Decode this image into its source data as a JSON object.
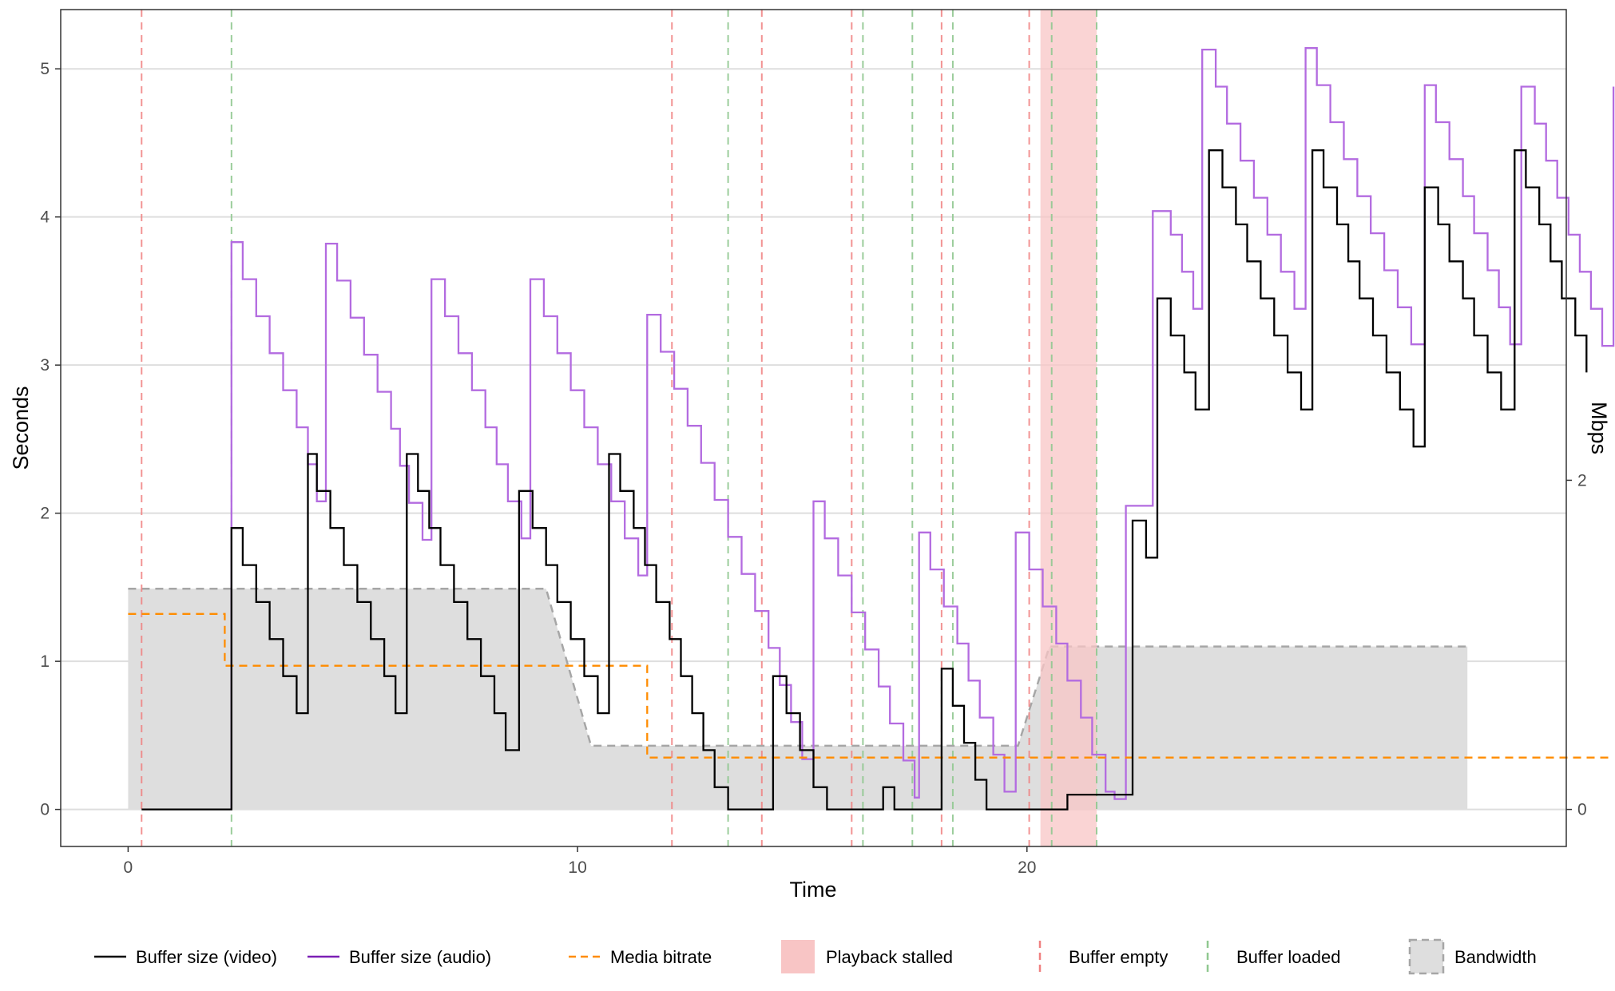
{
  "chart_data": {
    "type": "line",
    "xlabel": "Time",
    "ylabel": "Seconds",
    "y2label": "Mbps",
    "xlim": [
      -1.5,
      32.0
    ],
    "ylim": [
      -0.25,
      5.4
    ],
    "y2lim": [
      -0.225,
      4.86
    ],
    "x_ticks": [
      {
        "v": 0,
        "label": "0"
      },
      {
        "v": 10,
        "label": "10"
      },
      {
        "v": 20,
        "label": "20"
      }
    ],
    "y_ticks": [
      {
        "v": 0,
        "label": "0"
      },
      {
        "v": 1,
        "label": "1"
      },
      {
        "v": 2,
        "label": "2"
      },
      {
        "v": 3,
        "label": "3"
      },
      {
        "v": 4,
        "label": "4"
      },
      {
        "v": 5,
        "label": "5"
      }
    ],
    "y2_ticks": [
      {
        "v": 0,
        "label": "0"
      },
      {
        "v": 2,
        "label": "2"
      }
    ],
    "grid": true,
    "legend_position": "bottom",
    "legend": [
      {
        "key": "video",
        "label": "Buffer size (video)"
      },
      {
        "key": "audio",
        "label": "Buffer size (audio)"
      },
      {
        "key": "bitrate",
        "label": "Media bitrate"
      },
      {
        "key": "stalled",
        "label": "Playback stalled"
      },
      {
        "key": "empty",
        "label": "Buffer empty"
      },
      {
        "key": "loaded",
        "label": "Buffer loaded"
      },
      {
        "key": "bandwidth",
        "label": "Bandwidth"
      }
    ],
    "colors": {
      "video": "#000000",
      "audio": "#b36be0",
      "bitrate": "#ff8c00",
      "stalled": "#f8c5c5",
      "empty": "#f08080",
      "loaded": "#90c890",
      "bandwidth_fill": "#dedede",
      "bandwidth_line": "#a6a6a6"
    },
    "series": [
      {
        "key": "video",
        "axis": "left",
        "step": true,
        "points": [
          [
            0.3,
            0
          ],
          [
            2.3,
            0
          ],
          [
            2.3,
            1.9
          ],
          [
            2.55,
            1.65
          ],
          [
            2.85,
            1.4
          ],
          [
            3.15,
            1.15
          ],
          [
            3.45,
            0.9
          ],
          [
            3.75,
            0.65
          ],
          [
            4.0,
            2.4
          ],
          [
            4.2,
            2.15
          ],
          [
            4.5,
            1.9
          ],
          [
            4.8,
            1.65
          ],
          [
            5.1,
            1.4
          ],
          [
            5.4,
            1.15
          ],
          [
            5.7,
            0.9
          ],
          [
            5.95,
            0.65
          ],
          [
            6.2,
            2.4
          ],
          [
            6.45,
            2.15
          ],
          [
            6.7,
            1.9
          ],
          [
            6.95,
            1.65
          ],
          [
            7.25,
            1.4
          ],
          [
            7.55,
            1.15
          ],
          [
            7.85,
            0.9
          ],
          [
            8.15,
            0.65
          ],
          [
            8.4,
            0.4
          ],
          [
            8.7,
            2.15
          ],
          [
            9.0,
            1.9
          ],
          [
            9.3,
            1.65
          ],
          [
            9.55,
            1.4
          ],
          [
            9.85,
            1.15
          ],
          [
            10.15,
            0.9
          ],
          [
            10.45,
            0.65
          ],
          [
            10.7,
            2.4
          ],
          [
            10.95,
            2.15
          ],
          [
            11.25,
            1.9
          ],
          [
            11.5,
            1.65
          ],
          [
            11.75,
            1.4
          ],
          [
            12.05,
            1.15
          ],
          [
            12.3,
            0.9
          ],
          [
            12.55,
            0.65
          ],
          [
            12.8,
            0.4
          ],
          [
            13.05,
            0.15
          ],
          [
            13.35,
            0
          ],
          [
            14.35,
            0
          ],
          [
            14.35,
            0.9
          ],
          [
            14.65,
            0.65
          ],
          [
            14.95,
            0.4
          ],
          [
            15.25,
            0.15
          ],
          [
            15.55,
            0
          ],
          [
            16.8,
            0
          ],
          [
            16.8,
            0.15
          ],
          [
            17.05,
            0
          ],
          [
            18.1,
            0
          ],
          [
            18.1,
            0.95
          ],
          [
            18.35,
            0.7
          ],
          [
            18.6,
            0.45
          ],
          [
            18.85,
            0.2
          ],
          [
            19.1,
            0
          ],
          [
            20.9,
            0
          ],
          [
            20.9,
            0.1
          ],
          [
            21.2,
            0.1
          ],
          [
            22.35,
            0.1
          ],
          [
            22.35,
            1.95
          ],
          [
            22.65,
            1.7
          ],
          [
            22.9,
            3.45
          ],
          [
            23.2,
            3.2
          ],
          [
            23.5,
            2.95
          ],
          [
            23.75,
            2.7
          ],
          [
            24.05,
            4.45
          ],
          [
            24.35,
            4.2
          ],
          [
            24.65,
            3.95
          ],
          [
            24.9,
            3.7
          ],
          [
            25.2,
            3.45
          ],
          [
            25.5,
            3.2
          ],
          [
            25.8,
            2.95
          ],
          [
            26.1,
            2.7
          ],
          [
            26.35,
            4.45
          ],
          [
            26.6,
            4.2
          ],
          [
            26.9,
            3.95
          ],
          [
            27.15,
            3.7
          ],
          [
            27.4,
            3.45
          ],
          [
            27.7,
            3.2
          ],
          [
            28.0,
            2.95
          ],
          [
            28.3,
            2.7
          ],
          [
            28.6,
            2.45
          ],
          [
            28.85,
            4.2
          ],
          [
            29.15,
            3.95
          ],
          [
            29.4,
            3.7
          ],
          [
            29.7,
            3.45
          ],
          [
            29.95,
            3.2
          ],
          [
            30.25,
            2.95
          ],
          [
            30.55,
            2.7
          ],
          [
            30.85,
            4.45
          ],
          [
            31.1,
            4.2
          ],
          [
            31.4,
            3.95
          ],
          [
            31.65,
            3.7
          ],
          [
            31.9,
            3.45
          ],
          [
            32.2,
            3.2
          ],
          [
            32.45,
            2.95
          ]
        ]
      },
      {
        "key": "audio",
        "axis": "left",
        "step": true,
        "points": [
          [
            2.3,
            0
          ],
          [
            2.3,
            3.83
          ],
          [
            2.55,
            3.58
          ],
          [
            2.85,
            3.33
          ],
          [
            3.15,
            3.08
          ],
          [
            3.45,
            2.83
          ],
          [
            3.75,
            2.58
          ],
          [
            4.0,
            2.33
          ],
          [
            4.2,
            2.08
          ],
          [
            4.4,
            3.82
          ],
          [
            4.65,
            3.57
          ],
          [
            4.95,
            3.32
          ],
          [
            5.25,
            3.07
          ],
          [
            5.55,
            2.82
          ],
          [
            5.85,
            2.57
          ],
          [
            6.05,
            2.32
          ],
          [
            6.25,
            2.07
          ],
          [
            6.55,
            1.82
          ],
          [
            6.75,
            3.58
          ],
          [
            7.05,
            3.33
          ],
          [
            7.35,
            3.08
          ],
          [
            7.65,
            2.83
          ],
          [
            7.95,
            2.58
          ],
          [
            8.2,
            2.33
          ],
          [
            8.45,
            2.08
          ],
          [
            8.75,
            1.83
          ],
          [
            8.95,
            3.58
          ],
          [
            9.25,
            3.33
          ],
          [
            9.55,
            3.08
          ],
          [
            9.85,
            2.83
          ],
          [
            10.15,
            2.58
          ],
          [
            10.45,
            2.33
          ],
          [
            10.75,
            2.08
          ],
          [
            11.05,
            1.83
          ],
          [
            11.35,
            1.58
          ],
          [
            11.55,
            3.34
          ],
          [
            11.85,
            3.09
          ],
          [
            12.15,
            2.84
          ],
          [
            12.45,
            2.59
          ],
          [
            12.75,
            2.34
          ],
          [
            13.05,
            2.09
          ],
          [
            13.35,
            1.84
          ],
          [
            13.65,
            1.59
          ],
          [
            13.95,
            1.34
          ],
          [
            14.25,
            1.09
          ],
          [
            14.5,
            0.84
          ],
          [
            14.75,
            0.59
          ],
          [
            15.0,
            0.34
          ],
          [
            15.25,
            2.08
          ],
          [
            15.5,
            1.83
          ],
          [
            15.8,
            1.58
          ],
          [
            16.1,
            1.33
          ],
          [
            16.4,
            1.08
          ],
          [
            16.7,
            0.83
          ],
          [
            16.95,
            0.58
          ],
          [
            17.25,
            0.33
          ],
          [
            17.5,
            0.08
          ],
          [
            17.6,
            1.87
          ],
          [
            17.85,
            1.62
          ],
          [
            18.15,
            1.37
          ],
          [
            18.45,
            1.12
          ],
          [
            18.7,
            0.87
          ],
          [
            18.95,
            0.62
          ],
          [
            19.25,
            0.37
          ],
          [
            19.5,
            0.12
          ],
          [
            19.75,
            1.87
          ],
          [
            20.05,
            1.62
          ],
          [
            20.35,
            1.37
          ],
          [
            20.65,
            1.12
          ],
          [
            20.9,
            0.87
          ],
          [
            21.2,
            0.62
          ],
          [
            21.45,
            0.37
          ],
          [
            21.75,
            0.12
          ],
          [
            21.95,
            0.07
          ],
          [
            22.2,
            2.05
          ],
          [
            22.8,
            4.04
          ],
          [
            23.2,
            3.88
          ],
          [
            23.45,
            3.63
          ],
          [
            23.7,
            3.38
          ],
          [
            23.9,
            5.13
          ],
          [
            24.2,
            4.88
          ],
          [
            24.45,
            4.63
          ],
          [
            24.75,
            4.38
          ],
          [
            25.05,
            4.13
          ],
          [
            25.35,
            3.88
          ],
          [
            25.65,
            3.63
          ],
          [
            25.95,
            3.38
          ],
          [
            26.2,
            5.14
          ],
          [
            26.45,
            4.89
          ],
          [
            26.75,
            4.64
          ],
          [
            27.05,
            4.39
          ],
          [
            27.35,
            4.14
          ],
          [
            27.65,
            3.89
          ],
          [
            27.95,
            3.64
          ],
          [
            28.25,
            3.39
          ],
          [
            28.55,
            3.14
          ],
          [
            28.85,
            4.89
          ],
          [
            29.1,
            4.64
          ],
          [
            29.4,
            4.39
          ],
          [
            29.7,
            4.14
          ],
          [
            29.95,
            3.89
          ],
          [
            30.25,
            3.64
          ],
          [
            30.5,
            3.39
          ],
          [
            30.75,
            3.14
          ],
          [
            31.0,
            4.88
          ],
          [
            31.3,
            4.63
          ],
          [
            31.55,
            4.38
          ],
          [
            31.8,
            4.13
          ],
          [
            32.05,
            3.88
          ],
          [
            32.3,
            3.63
          ],
          [
            32.55,
            3.38
          ],
          [
            32.8,
            3.13
          ],
          [
            33.05,
            4.88
          ]
        ]
      },
      {
        "key": "bitrate",
        "axis": "left",
        "step": true,
        "points": [
          [
            0.0,
            1.32
          ],
          [
            2.15,
            1.32
          ],
          [
            2.15,
            0.97
          ],
          [
            11.55,
            0.97
          ],
          [
            11.55,
            0.35
          ],
          [
            33.05,
            0.35
          ]
        ]
      }
    ],
    "bandwidth": {
      "axis": "left",
      "points": [
        [
          0.0,
          1.49
        ],
        [
          9.3,
          1.49
        ],
        [
          10.3,
          0.43
        ],
        [
          19.8,
          0.43
        ],
        [
          20.5,
          1.1
        ],
        [
          29.8,
          1.1
        ]
      ]
    },
    "stalled": [
      [
        20.3,
        21.55
      ]
    ],
    "buffer_empty": [
      0.3,
      12.1,
      14.1,
      16.1,
      18.1,
      20.05
    ],
    "buffer_loaded": [
      2.3,
      13.35,
      16.35,
      17.45,
      18.35,
      20.55,
      21.55
    ]
  }
}
